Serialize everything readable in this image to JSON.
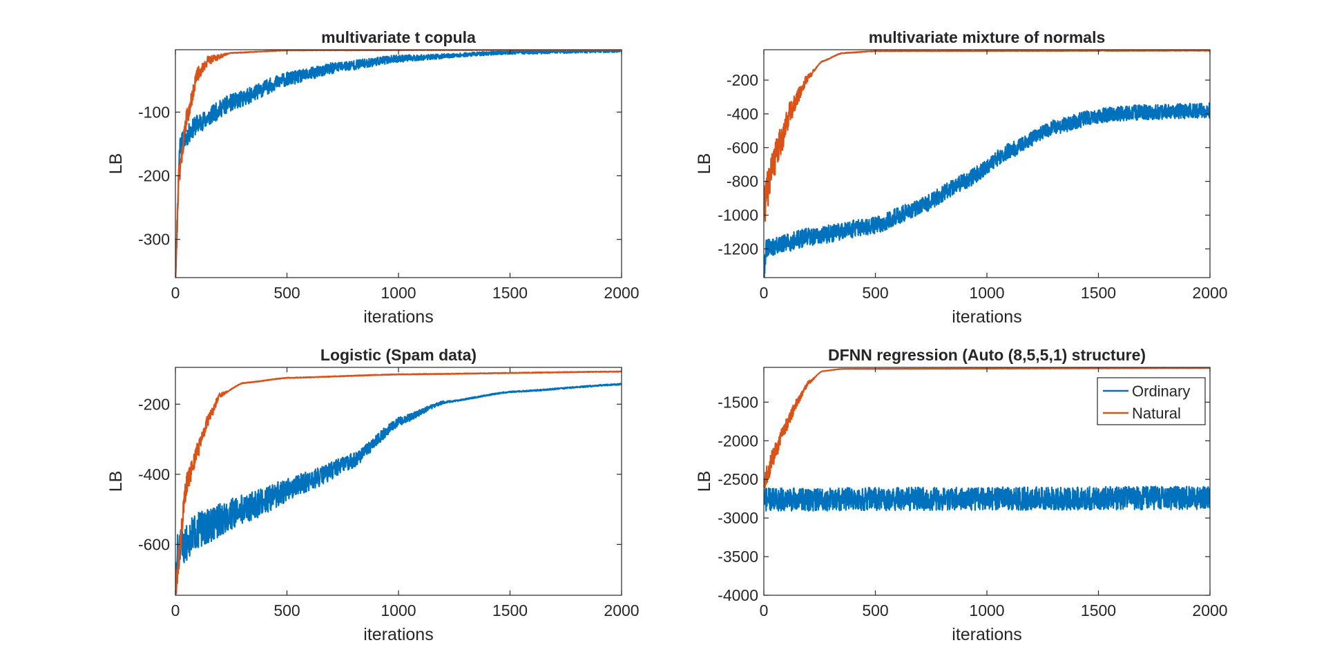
{
  "figure_title": "",
  "colors": {
    "ordinary": "#0072BD",
    "natural": "#D95319",
    "axis": "#262626"
  },
  "chart_data": [
    {
      "type": "line",
      "title": "multivariate t copula",
      "xlabel": "iterations",
      "ylabel": "LB",
      "xlim": [
        0,
        2000
      ],
      "ylim": [
        -360,
        -2
      ],
      "xticks": [
        0,
        500,
        1000,
        1500,
        2000
      ],
      "yticks": [
        -300,
        -200,
        -100
      ],
      "show_legend": false,
      "series": [
        {
          "name": "Ordinary",
          "start": -355,
          "end": -3,
          "tau": 380,
          "kink": 0,
          "shape": "exp",
          "noise": [
            16,
            3
          ],
          "seed": 11,
          "anchors": [
            [
              0,
              -355
            ],
            [
              20,
              -150
            ],
            [
              100,
              -118
            ],
            [
              250,
              -85
            ],
            [
              500,
              -48
            ],
            [
              750,
              -28
            ],
            [
              1000,
              -16
            ],
            [
              1500,
              -6
            ],
            [
              2000,
              -3
            ]
          ]
        },
        {
          "name": "Natural",
          "start": -355,
          "end": -2,
          "tau": 48,
          "kink": 0,
          "shape": "exp",
          "noise": [
            18,
            0.5
          ],
          "seed": 21,
          "anchors": [
            [
              0,
              -355
            ],
            [
              15,
              -200
            ],
            [
              50,
              -110
            ],
            [
              100,
              -40
            ],
            [
              150,
              -18
            ],
            [
              250,
              -7
            ],
            [
              500,
              -3
            ],
            [
              2000,
              -2
            ]
          ]
        }
      ]
    },
    {
      "type": "line",
      "title": "multivariate mixture of normals",
      "xlabel": "iterations",
      "ylabel": "LB",
      "xlim": [
        0,
        2000
      ],
      "ylim": [
        -1370,
        -20
      ],
      "xticks": [
        0,
        500,
        1000,
        1500,
        2000
      ],
      "yticks": [
        -1200,
        -1000,
        -800,
        -600,
        -400,
        -200
      ],
      "show_legend": false,
      "series": [
        {
          "name": "Ordinary",
          "start": -1350,
          "end": -380,
          "tau": 0,
          "kink": 0,
          "shape": "points",
          "noise": [
            55,
            45
          ],
          "seed": 31,
          "anchors": [
            [
              0,
              -1350
            ],
            [
              10,
              -1200
            ],
            [
              200,
              -1130
            ],
            [
              500,
              -1060
            ],
            [
              700,
              -950
            ],
            [
              900,
              -800
            ],
            [
              1100,
              -620
            ],
            [
              1300,
              -480
            ],
            [
              1500,
              -410
            ],
            [
              1700,
              -390
            ],
            [
              2000,
              -380
            ]
          ]
        },
        {
          "name": "Natural",
          "start": -950,
          "end": -25,
          "tau": 0,
          "kink": 0,
          "shape": "points",
          "noise": [
            120,
            2
          ],
          "seed": 41,
          "anchors": [
            [
              0,
              -950
            ],
            [
              40,
              -700
            ],
            [
              80,
              -550
            ],
            [
              120,
              -380
            ],
            [
              200,
              -180
            ],
            [
              260,
              -90
            ],
            [
              350,
              -40
            ],
            [
              500,
              -28
            ],
            [
              2000,
              -25
            ]
          ]
        }
      ]
    },
    {
      "type": "line",
      "title": "Logistic (Spam data)",
      "xlabel": "iterations",
      "ylabel": "LB",
      "xlim": [
        0,
        2000
      ],
      "ylim": [
        -745,
        -95
      ],
      "xticks": [
        0,
        500,
        1000,
        1500,
        2000
      ],
      "yticks": [
        -600,
        -400,
        -200
      ],
      "show_legend": false,
      "series": [
        {
          "name": "Ordinary",
          "start": -740,
          "end": -143,
          "tau": 0,
          "kink": 0,
          "shape": "points",
          "noise": [
            55,
            2
          ],
          "seed": 51,
          "anchors": [
            [
              0,
              -740
            ],
            [
              10,
              -620
            ],
            [
              100,
              -560
            ],
            [
              300,
              -500
            ],
            [
              600,
              -420
            ],
            [
              800,
              -360
            ],
            [
              1000,
              -250
            ],
            [
              1200,
              -195
            ],
            [
              1500,
              -165
            ],
            [
              2000,
              -143
            ]
          ]
        },
        {
          "name": "Natural",
          "start": -720,
          "end": -107,
          "tau": 0,
          "kink": 0,
          "shape": "points",
          "noise": [
            40,
            1
          ],
          "seed": 61,
          "anchors": [
            [
              0,
              -720
            ],
            [
              50,
              -430
            ],
            [
              100,
              -330
            ],
            [
              150,
              -240
            ],
            [
              200,
              -175
            ],
            [
              300,
              -140
            ],
            [
              500,
              -125
            ],
            [
              1000,
              -115
            ],
            [
              2000,
              -107
            ]
          ]
        }
      ]
    },
    {
      "type": "line",
      "title": "DFNN regression (Auto (8,5,5,1) structure)",
      "xlabel": "iterations",
      "ylabel": "LB",
      "xlim": [
        0,
        2000
      ],
      "ylim": [
        -4000,
        -1050
      ],
      "xticks": [
        0,
        500,
        1000,
        1500,
        2000
      ],
      "yticks": [
        -4000,
        -3500,
        -3000,
        -2500,
        -2000,
        -1500
      ],
      "show_legend": true,
      "legend_location": "top-right",
      "series": [
        {
          "name": "Ordinary",
          "start": -2750,
          "end": -2750,
          "tau": 0,
          "kink": 0,
          "shape": "points",
          "noise": [
            150,
            150
          ],
          "seed": 71,
          "anchors": [
            [
              0,
              -2760
            ],
            [
              1000,
              -2750
            ],
            [
              2000,
              -2740
            ]
          ]
        },
        {
          "name": "Natural",
          "start": -2550,
          "end": -1060,
          "tau": 0,
          "kink": 0,
          "shape": "points",
          "noise": [
            140,
            2
          ],
          "seed": 81,
          "anchors": [
            [
              0,
              -2550
            ],
            [
              50,
              -2150
            ],
            [
              100,
              -1800
            ],
            [
              150,
              -1500
            ],
            [
              200,
              -1250
            ],
            [
              260,
              -1100
            ],
            [
              350,
              -1070
            ],
            [
              2000,
              -1060
            ]
          ]
        }
      ]
    }
  ]
}
